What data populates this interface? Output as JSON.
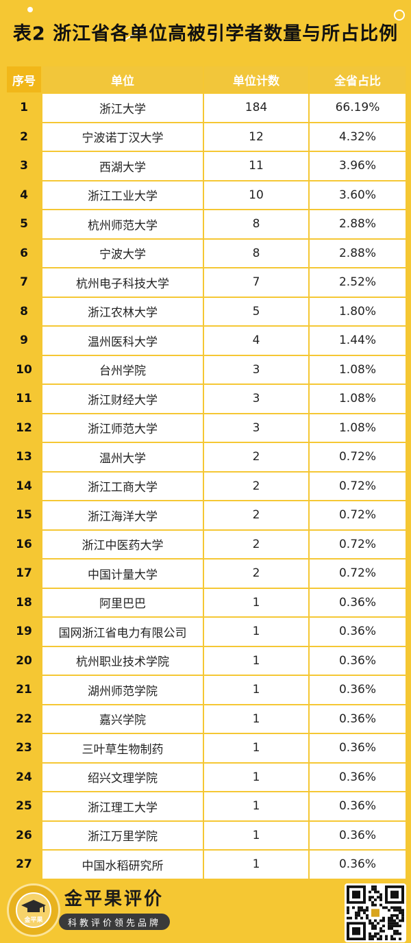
{
  "title": "表2 浙江省各单位高被引学者数量与所占比例",
  "table": {
    "headers": [
      "序号",
      "单位",
      "单位计数",
      "全省占比"
    ],
    "rows": [
      {
        "idx": "1",
        "unit": "浙江大学",
        "count": "184",
        "pct": "66.19%"
      },
      {
        "idx": "2",
        "unit": "宁波诺丁汉大学",
        "count": "12",
        "pct": "4.32%"
      },
      {
        "idx": "3",
        "unit": "西湖大学",
        "count": "11",
        "pct": "3.96%"
      },
      {
        "idx": "4",
        "unit": "浙江工业大学",
        "count": "10",
        "pct": "3.60%"
      },
      {
        "idx": "5",
        "unit": "杭州师范大学",
        "count": "8",
        "pct": "2.88%"
      },
      {
        "idx": "6",
        "unit": "宁波大学",
        "count": "8",
        "pct": "2.88%"
      },
      {
        "idx": "7",
        "unit": "杭州电子科技大学",
        "count": "7",
        "pct": "2.52%"
      },
      {
        "idx": "8",
        "unit": "浙江农林大学",
        "count": "5",
        "pct": "1.80%"
      },
      {
        "idx": "9",
        "unit": "温州医科大学",
        "count": "4",
        "pct": "1.44%"
      },
      {
        "idx": "10",
        "unit": "台州学院",
        "count": "3",
        "pct": "1.08%"
      },
      {
        "idx": "11",
        "unit": "浙江财经大学",
        "count": "3",
        "pct": "1.08%"
      },
      {
        "idx": "12",
        "unit": "浙江师范大学",
        "count": "3",
        "pct": "1.08%"
      },
      {
        "idx": "13",
        "unit": "温州大学",
        "count": "2",
        "pct": "0.72%"
      },
      {
        "idx": "14",
        "unit": "浙江工商大学",
        "count": "2",
        "pct": "0.72%"
      },
      {
        "idx": "15",
        "unit": "浙江海洋大学",
        "count": "2",
        "pct": "0.72%"
      },
      {
        "idx": "16",
        "unit": "浙江中医药大学",
        "count": "2",
        "pct": "0.72%"
      },
      {
        "idx": "17",
        "unit": "中国计量大学",
        "count": "2",
        "pct": "0.72%"
      },
      {
        "idx": "18",
        "unit": "阿里巴巴",
        "count": "1",
        "pct": "0.36%"
      },
      {
        "idx": "19",
        "unit": "国网浙江省电力有限公司",
        "count": "1",
        "pct": "0.36%"
      },
      {
        "idx": "20",
        "unit": "杭州职业技术学院",
        "count": "1",
        "pct": "0.36%"
      },
      {
        "idx": "21",
        "unit": "湖州师范学院",
        "count": "1",
        "pct": "0.36%"
      },
      {
        "idx": "22",
        "unit": "嘉兴学院",
        "count": "1",
        "pct": "0.36%"
      },
      {
        "idx": "23",
        "unit": "三叶草生物制药",
        "count": "1",
        "pct": "0.36%"
      },
      {
        "idx": "24",
        "unit": "绍兴文理学院",
        "count": "1",
        "pct": "0.36%"
      },
      {
        "idx": "25",
        "unit": "浙江理工大学",
        "count": "1",
        "pct": "0.36%"
      },
      {
        "idx": "26",
        "unit": "浙江万里学院",
        "count": "1",
        "pct": "0.36%"
      },
      {
        "idx": "27",
        "unit": "中国水稻研究所",
        "count": "1",
        "pct": "0.36%"
      }
    ]
  },
  "footer": {
    "brand": "金平果评价",
    "slogan": "科教评价领先品牌",
    "logo_text": "金平果"
  },
  "colors": {
    "background": "#F5C733",
    "header_bg": "#F2C63A",
    "index_header_bg": "#F1B719",
    "cell_bg": "#FFFFFF"
  }
}
